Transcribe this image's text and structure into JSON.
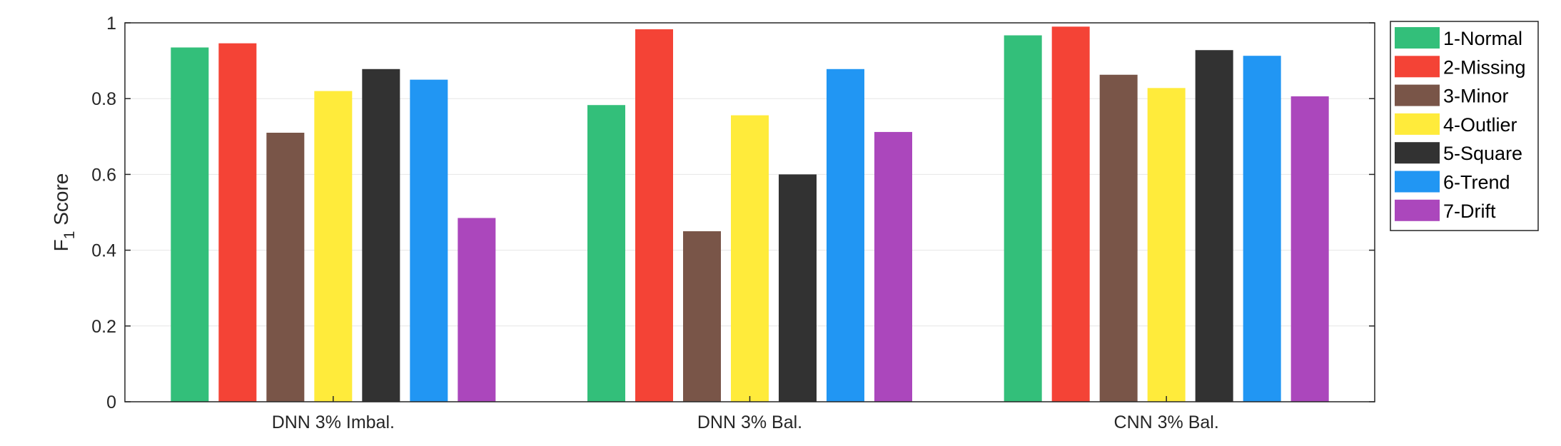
{
  "chart_data": {
    "type": "bar",
    "categories": [
      "DNN 3% Imbal.",
      "DNN 3% Bal.",
      "CNN 3% Bal."
    ],
    "series": [
      {
        "name": "1-Normal",
        "color": "#33bf7a",
        "values": [
          0.935,
          0.783,
          0.967
        ]
      },
      {
        "name": "2-Missing",
        "color": "#f44336",
        "values": [
          0.946,
          0.983,
          0.99
        ]
      },
      {
        "name": "3-Minor",
        "color": "#795548",
        "values": [
          0.71,
          0.45,
          0.863
        ]
      },
      {
        "name": "4-Outlier",
        "color": "#ffeb3b",
        "values": [
          0.82,
          0.756,
          0.828
        ]
      },
      {
        "name": "5-Square",
        "color": "#323232",
        "values": [
          0.878,
          0.6,
          0.928
        ]
      },
      {
        "name": "6-Trend",
        "color": "#2196f3",
        "values": [
          0.85,
          0.878,
          0.913
        ]
      },
      {
        "name": "7-Drift",
        "color": "#ab47bc",
        "values": [
          0.485,
          0.712,
          0.806
        ]
      }
    ],
    "ylabel_main": "F",
    "ylabel_sub": "1",
    "ylabel_rest": " Score",
    "ylim": [
      0,
      1
    ],
    "yticks": [
      0,
      0.2,
      0.4,
      0.6,
      0.8,
      1
    ],
    "ytick_labels": [
      "0",
      "0.2",
      "0.4",
      "0.6",
      "0.8",
      "1"
    ],
    "grid": "horizontal",
    "legend_placement": "outside-top-right"
  }
}
